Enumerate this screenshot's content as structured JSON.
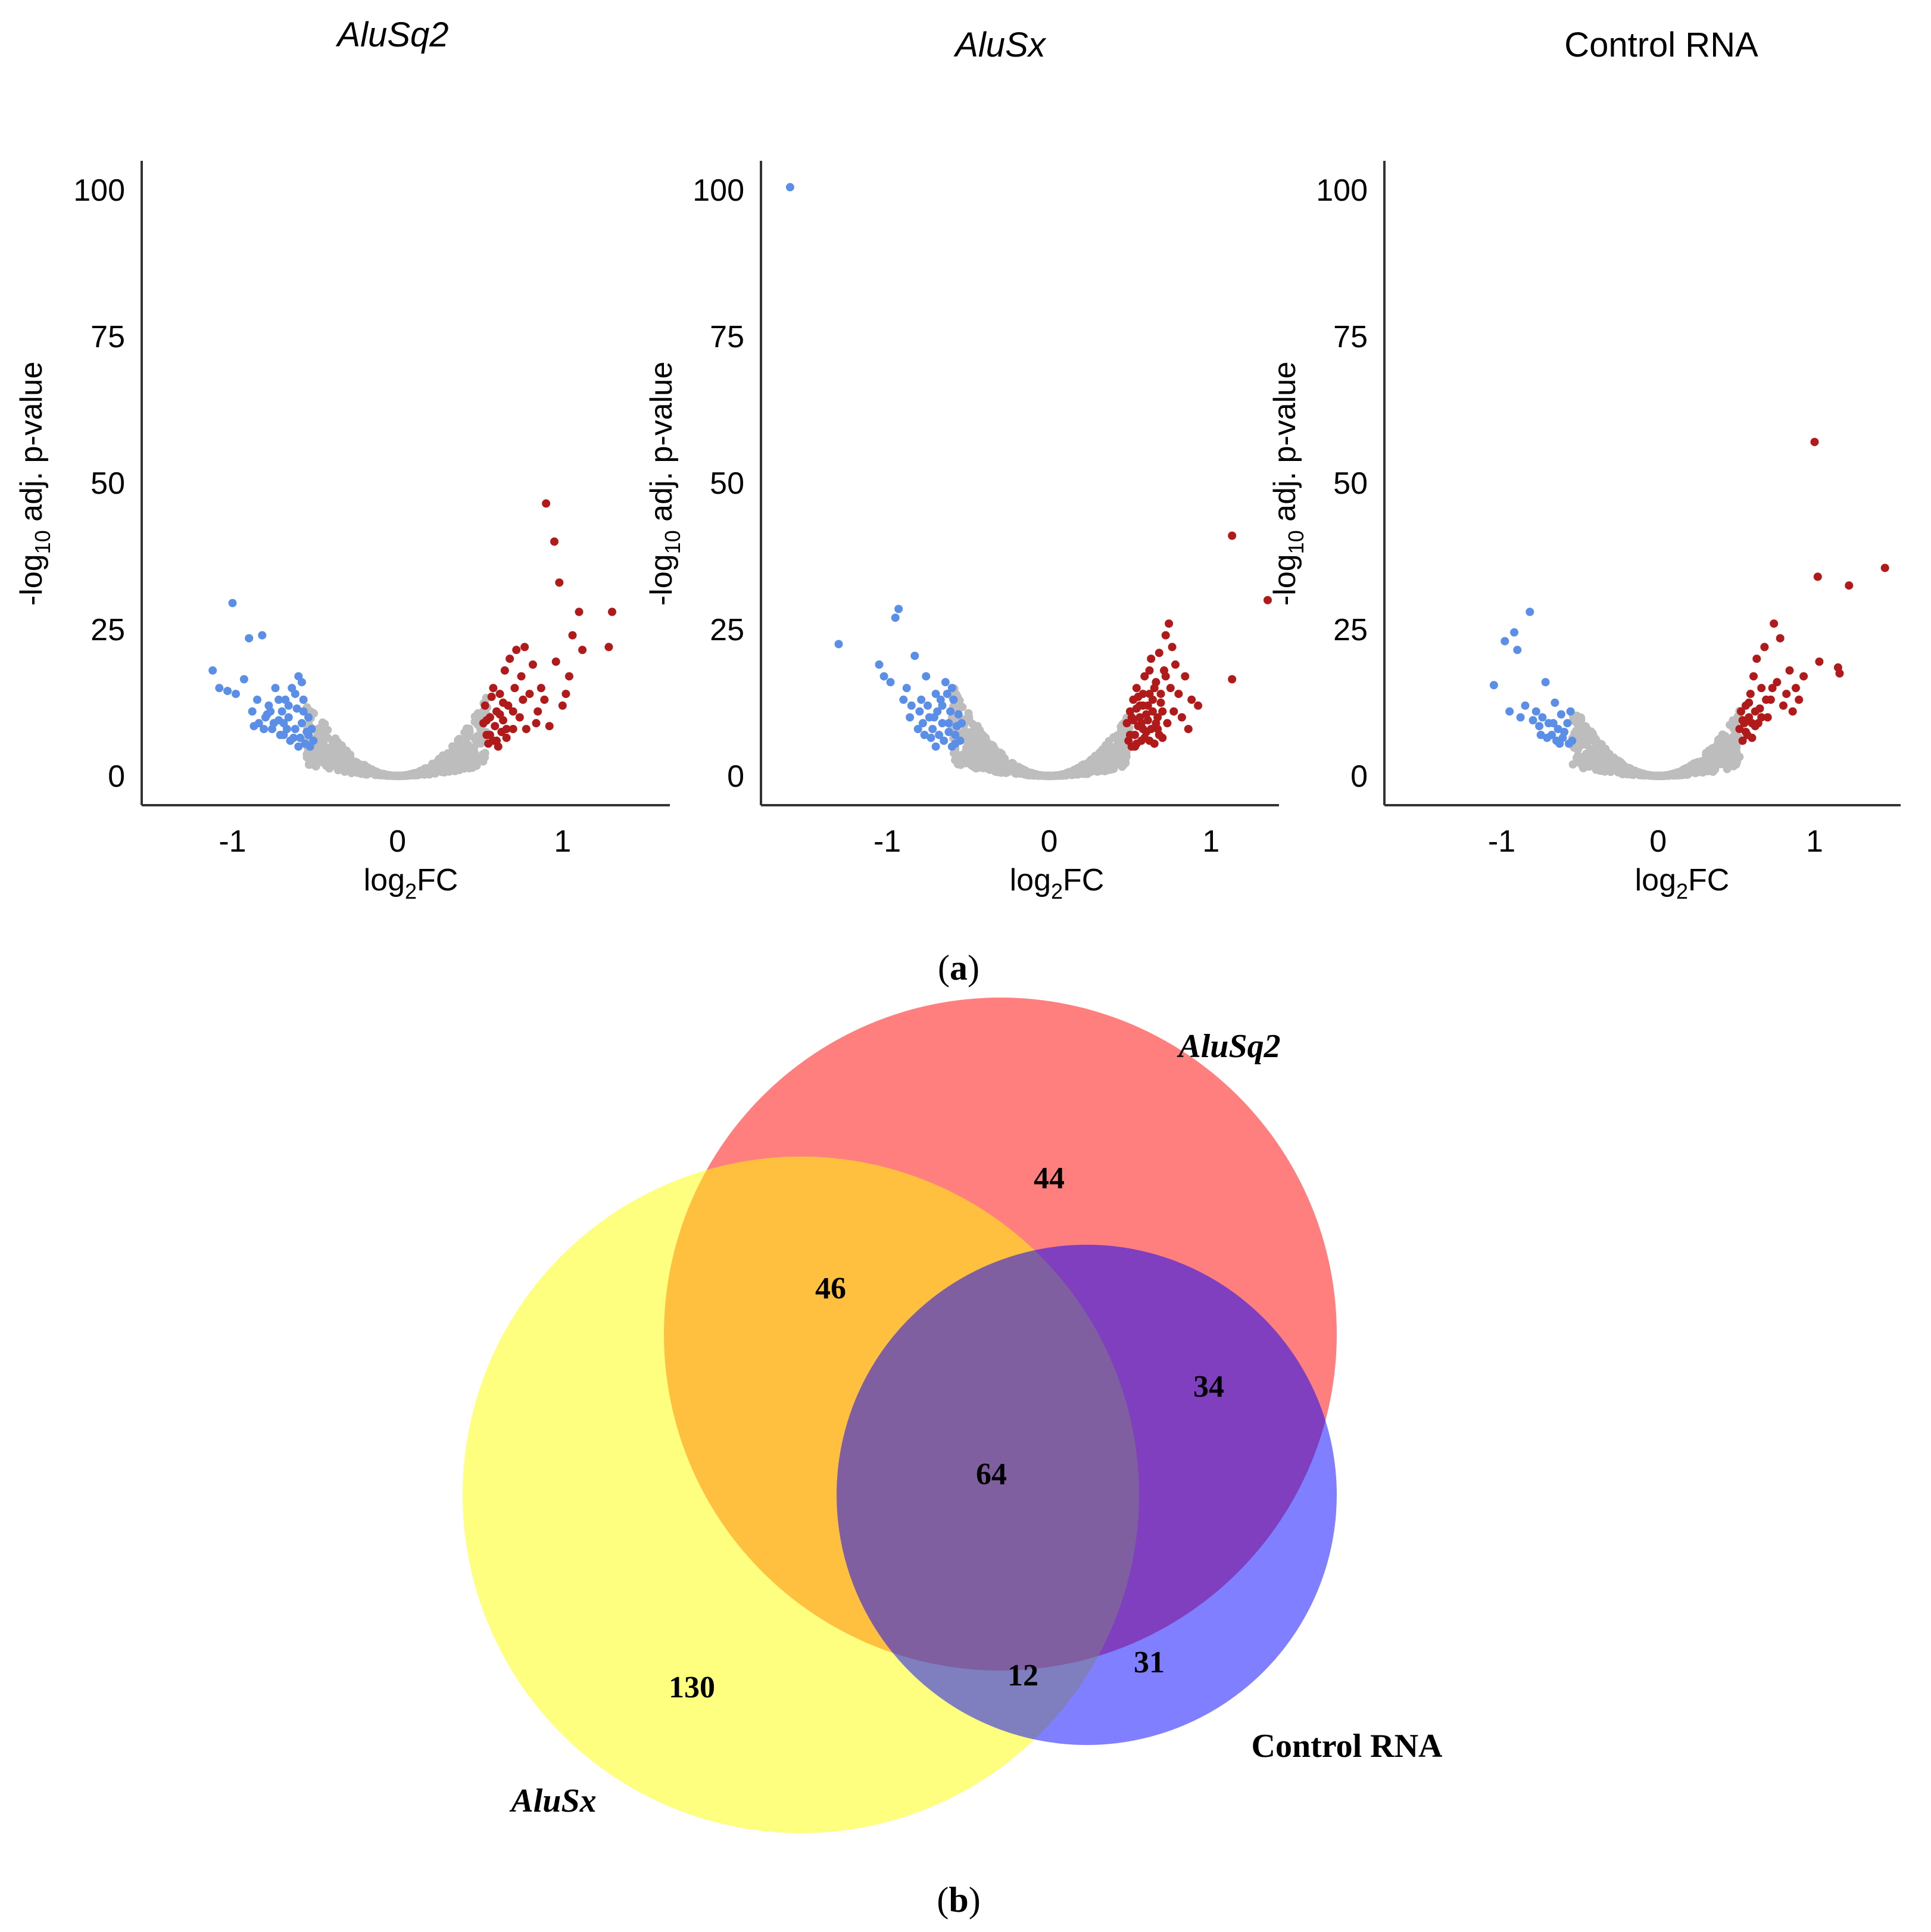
{
  "chart_data": [
    {
      "type": "scatter",
      "title": "AluSq2",
      "title_italic": true,
      "xlabel_main": "log",
      "xlabel_sub": "2",
      "xlabel_tail": "FC",
      "ylabel_main": "-log",
      "ylabel_sub": "10",
      "ylabel_tail": " adj. p-value",
      "xlim": [
        -1.55,
        1.65
      ],
      "ylim": [
        -5,
        105
      ],
      "xticks": [
        -1,
        0,
        1
      ],
      "yticks": [
        0,
        25,
        50,
        75,
        100
      ],
      "colors": {
        "down": "#5b8ee6",
        "up": "#b11a1a",
        "ns": "#bdbdbd"
      },
      "ns_cloud": {
        "xmin": -0.55,
        "xmax": 0.55,
        "k": 42,
        "max_y": 17
      },
      "down": [
        [
          -1.12,
          18
        ],
        [
          -1.08,
          15
        ],
        [
          -1.03,
          14.5
        ],
        [
          -1.0,
          29.5
        ],
        [
          -0.98,
          14
        ],
        [
          -0.93,
          16.5
        ],
        [
          -0.9,
          23.5
        ],
        [
          -0.88,
          11
        ],
        [
          -0.85,
          13
        ],
        [
          -0.82,
          24
        ],
        [
          -0.8,
          10
        ],
        [
          -0.78,
          12
        ],
        [
          -0.76,
          8
        ],
        [
          -0.74,
          15
        ],
        [
          -0.72,
          9.5
        ],
        [
          -0.7,
          11
        ],
        [
          -0.69,
          7
        ],
        [
          -0.68,
          13
        ],
        [
          -0.66,
          10
        ],
        [
          -0.65,
          6
        ],
        [
          -0.64,
          15
        ],
        [
          -0.62,
          8
        ],
        [
          -0.61,
          11.5
        ],
        [
          -0.6,
          17
        ],
        [
          -0.59,
          6.5
        ],
        [
          -0.58,
          9
        ],
        [
          -0.57,
          13
        ],
        [
          -0.56,
          5.5
        ],
        [
          -0.55,
          7.5
        ],
        [
          -0.54,
          10
        ],
        [
          -0.53,
          5
        ],
        [
          -0.52,
          8
        ],
        [
          -0.51,
          6
        ],
        [
          -0.6,
          5
        ],
        [
          -0.63,
          6.5
        ],
        [
          -0.67,
          8
        ],
        [
          -0.71,
          7
        ],
        [
          -0.75,
          9
        ],
        [
          -0.79,
          10.5
        ],
        [
          -0.84,
          9
        ],
        [
          -0.87,
          8.5
        ],
        [
          -0.66,
          12
        ],
        [
          -0.62,
          14
        ],
        [
          -0.58,
          16
        ],
        [
          -0.72,
          13
        ],
        [
          -0.77,
          11
        ],
        [
          -0.54,
          7
        ],
        [
          -0.57,
          11
        ],
        [
          -0.69,
          9
        ],
        [
          -0.81,
          8
        ]
      ],
      "up": [
        [
          0.52,
          9
        ],
        [
          0.53,
          12
        ],
        [
          0.54,
          7
        ],
        [
          0.55,
          5.5
        ],
        [
          0.56,
          10
        ],
        [
          0.57,
          13.5
        ],
        [
          0.58,
          6
        ],
        [
          0.59,
          8.5
        ],
        [
          0.6,
          11
        ],
        [
          0.61,
          5
        ],
        [
          0.62,
          14
        ],
        [
          0.63,
          7.5
        ],
        [
          0.64,
          9.5
        ],
        [
          0.65,
          18
        ],
        [
          0.66,
          6.5
        ],
        [
          0.67,
          12
        ],
        [
          0.68,
          20
        ],
        [
          0.7,
          8
        ],
        [
          0.71,
          15
        ],
        [
          0.72,
          21.5
        ],
        [
          0.74,
          10
        ],
        [
          0.75,
          17
        ],
        [
          0.77,
          22
        ],
        [
          0.78,
          8
        ],
        [
          0.8,
          14
        ],
        [
          0.82,
          19
        ],
        [
          0.84,
          9
        ],
        [
          0.85,
          11
        ],
        [
          0.87,
          15
        ],
        [
          0.89,
          13
        ],
        [
          0.9,
          46.5
        ],
        [
          0.92,
          8.5
        ],
        [
          0.95,
          40
        ],
        [
          0.96,
          19.5
        ],
        [
          0.98,
          33
        ],
        [
          1.0,
          12
        ],
        [
          1.02,
          14
        ],
        [
          1.04,
          17
        ],
        [
          1.06,
          24
        ],
        [
          1.1,
          28
        ],
        [
          1.12,
          21.5
        ],
        [
          1.3,
          28
        ],
        [
          1.28,
          22
        ],
        [
          0.58,
          15
        ],
        [
          0.62,
          10.5
        ],
        [
          0.66,
          8
        ],
        [
          0.56,
          7
        ],
        [
          0.6,
          6
        ],
        [
          0.64,
          12.5
        ],
        [
          0.7,
          11
        ],
        [
          0.76,
          13
        ],
        [
          0.54,
          9.5
        ]
      ]
    },
    {
      "type": "scatter",
      "title": "AluSx",
      "title_italic": true,
      "xlabel_main": "log",
      "xlabel_sub": "2",
      "xlabel_tail": "FC",
      "ylabel_main": "-log",
      "ylabel_sub": "10",
      "ylabel_tail": " adj. p-value",
      "xlim": [
        -1.78,
        1.42
      ],
      "ylim": [
        -5,
        105
      ],
      "xticks": [
        -1,
        0,
        1
      ],
      "yticks": [
        0,
        25,
        50,
        75,
        100
      ],
      "colors": {
        "down": "#5b8ee6",
        "up": "#b11a1a",
        "ns": "#bdbdbd"
      },
      "ns_cloud": {
        "xmin": -0.6,
        "xmax": 0.5,
        "k": 40,
        "max_y": 16
      },
      "down": [
        [
          -1.6,
          100.5
        ],
        [
          -1.3,
          22.5
        ],
        [
          -1.05,
          19
        ],
        [
          -1.02,
          17
        ],
        [
          -0.98,
          16
        ],
        [
          -0.95,
          27
        ],
        [
          -0.93,
          28.5
        ],
        [
          -0.9,
          13
        ],
        [
          -0.88,
          15
        ],
        [
          -0.85,
          12
        ],
        [
          -0.83,
          20.5
        ],
        [
          -0.8,
          11
        ],
        [
          -0.78,
          9
        ],
        [
          -0.76,
          17
        ],
        [
          -0.74,
          10
        ],
        [
          -0.72,
          8
        ],
        [
          -0.7,
          14
        ],
        [
          -0.68,
          7
        ],
        [
          -0.66,
          12
        ],
        [
          -0.65,
          6
        ],
        [
          -0.64,
          16
        ],
        [
          -0.62,
          9
        ],
        [
          -0.61,
          11
        ],
        [
          -0.6,
          5
        ],
        [
          -0.59,
          13
        ],
        [
          -0.58,
          7
        ],
        [
          -0.57,
          8.5
        ],
        [
          -0.56,
          10.5
        ],
        [
          -0.55,
          6
        ],
        [
          -0.54,
          9
        ],
        [
          -0.7,
          5
        ],
        [
          -0.73,
          6.5
        ],
        [
          -0.77,
          7
        ],
        [
          -0.81,
          8
        ],
        [
          -0.86,
          10
        ],
        [
          -0.69,
          11
        ],
        [
          -0.63,
          14
        ],
        [
          -0.6,
          15
        ],
        [
          -0.67,
          13
        ],
        [
          -0.75,
          12
        ],
        [
          -0.58,
          5.5
        ],
        [
          -0.62,
          7.5
        ],
        [
          -0.66,
          9
        ],
        [
          -0.71,
          10
        ],
        [
          -0.79,
          13
        ]
      ],
      "up": [
        [
          0.48,
          9
        ],
        [
          0.49,
          6
        ],
        [
          0.5,
          11
        ],
        [
          0.51,
          5
        ],
        [
          0.52,
          13
        ],
        [
          0.53,
          7
        ],
        [
          0.54,
          15
        ],
        [
          0.55,
          8.5
        ],
        [
          0.56,
          10
        ],
        [
          0.57,
          6
        ],
        [
          0.58,
          12
        ],
        [
          0.59,
          17
        ],
        [
          0.6,
          7.5
        ],
        [
          0.61,
          9.5
        ],
        [
          0.62,
          14
        ],
        [
          0.63,
          20
        ],
        [
          0.64,
          11
        ],
        [
          0.65,
          5.5
        ],
        [
          0.66,
          16
        ],
        [
          0.67,
          8
        ],
        [
          0.68,
          21
        ],
        [
          0.69,
          12.5
        ],
        [
          0.7,
          6.5
        ],
        [
          0.71,
          18
        ],
        [
          0.72,
          24
        ],
        [
          0.73,
          9
        ],
        [
          0.74,
          26
        ],
        [
          0.75,
          15
        ],
        [
          0.77,
          11
        ],
        [
          0.78,
          19
        ],
        [
          0.8,
          14
        ],
        [
          0.82,
          10
        ],
        [
          0.84,
          17
        ],
        [
          0.86,
          8
        ],
        [
          0.88,
          13
        ],
        [
          0.92,
          12
        ],
        [
          1.13,
          41
        ],
        [
          1.13,
          16.5
        ],
        [
          1.35,
          30
        ],
        [
          0.5,
          7
        ],
        [
          0.52,
          9.5
        ],
        [
          0.54,
          5.5
        ],
        [
          0.56,
          12
        ],
        [
          0.58,
          8
        ],
        [
          0.6,
          10.5
        ],
        [
          0.62,
          6
        ],
        [
          0.64,
          13
        ],
        [
          0.66,
          9
        ],
        [
          0.68,
          7
        ],
        [
          0.7,
          11
        ],
        [
          0.51,
          10
        ],
        [
          0.53,
          5
        ],
        [
          0.55,
          13.5
        ],
        [
          0.57,
          9
        ],
        [
          0.59,
          6.5
        ],
        [
          0.61,
          12
        ],
        [
          0.63,
          8
        ],
        [
          0.65,
          15
        ],
        [
          0.67,
          10
        ],
        [
          0.69,
          14
        ],
        [
          0.76,
          22
        ],
        [
          0.72,
          17
        ],
        [
          0.62,
          18
        ],
        [
          0.58,
          14
        ],
        [
          0.54,
          11.5
        ]
      ]
    },
    {
      "type": "scatter",
      "title": "Control RNA",
      "title_italic": false,
      "xlabel_main": "log",
      "xlabel_sub": "2",
      "xlabel_tail": "FC",
      "ylabel_main": "-log",
      "ylabel_sub": "10",
      "ylabel_tail": " adj. p-value",
      "xlim": [
        -1.75,
        1.55
      ],
      "ylim": [
        -5,
        105
      ],
      "xticks": [
        -1,
        0,
        1
      ],
      "yticks": [
        0,
        25,
        50,
        75,
        100
      ],
      "colors": {
        "down": "#5b8ee6",
        "up": "#b11a1a",
        "ns": "#bdbdbd"
      },
      "ns_cloud": {
        "xmin": -0.55,
        "xmax": 0.52,
        "k": 38,
        "max_y": 14
      },
      "down": [
        [
          -1.05,
          15.5
        ],
        [
          -0.98,
          23
        ],
        [
          -0.95,
          11
        ],
        [
          -0.92,
          24.5
        ],
        [
          -0.9,
          21.5
        ],
        [
          -0.88,
          10
        ],
        [
          -0.85,
          12
        ],
        [
          -0.82,
          28
        ],
        [
          -0.8,
          9.5
        ],
        [
          -0.78,
          11
        ],
        [
          -0.76,
          8.5
        ],
        [
          -0.74,
          10
        ],
        [
          -0.72,
          16
        ],
        [
          -0.7,
          9
        ],
        [
          -0.68,
          7
        ],
        [
          -0.66,
          12.5
        ],
        [
          -0.65,
          6
        ],
        [
          -0.64,
          8
        ],
        [
          -0.62,
          10.5
        ],
        [
          -0.61,
          6.5
        ],
        [
          -0.6,
          7.5
        ],
        [
          -0.58,
          9
        ],
        [
          -0.57,
          5.5
        ],
        [
          -0.56,
          11
        ],
        [
          -0.55,
          6
        ],
        [
          -0.67,
          9
        ],
        [
          -0.71,
          6.5
        ],
        [
          -0.75,
          7
        ],
        [
          -0.63,
          5.5
        ]
      ],
      "up": [
        [
          0.52,
          8
        ],
        [
          0.53,
          11
        ],
        [
          0.54,
          6
        ],
        [
          0.55,
          9
        ],
        [
          0.56,
          12
        ],
        [
          0.57,
          7
        ],
        [
          0.58,
          10
        ],
        [
          0.59,
          14
        ],
        [
          0.6,
          6.5
        ],
        [
          0.61,
          17
        ],
        [
          0.62,
          8.5
        ],
        [
          0.63,
          20
        ],
        [
          0.64,
          9
        ],
        [
          0.65,
          11.5
        ],
        [
          0.66,
          15
        ],
        [
          0.68,
          22
        ],
        [
          0.7,
          10
        ],
        [
          0.72,
          13
        ],
        [
          0.74,
          26
        ],
        [
          0.76,
          16
        ],
        [
          0.78,
          23.5
        ],
        [
          0.8,
          12
        ],
        [
          0.82,
          14
        ],
        [
          0.84,
          18
        ],
        [
          0.86,
          11
        ],
        [
          0.88,
          15
        ],
        [
          0.9,
          13
        ],
        [
          0.93,
          17
        ],
        [
          1.0,
          57
        ],
        [
          1.02,
          34
        ],
        [
          1.03,
          19.5
        ],
        [
          1.15,
          18.5
        ],
        [
          1.16,
          17.5
        ],
        [
          1.22,
          32.5
        ],
        [
          1.45,
          35.5
        ],
        [
          0.54,
          9.5
        ],
        [
          0.56,
          7.5
        ],
        [
          0.58,
          12.5
        ],
        [
          0.6,
          9
        ],
        [
          0.62,
          11
        ],
        [
          0.66,
          10
        ],
        [
          0.69,
          13
        ],
        [
          0.73,
          15
        ]
      ]
    }
  ],
  "caption_a": "a",
  "caption_b": "b",
  "venn": {
    "sets": [
      {
        "name": "AluSq2",
        "color": "#ff0000",
        "opacity": 0.5,
        "italic": true
      },
      {
        "name": "AluSx",
        "color": "#ffff00",
        "opacity": 0.5,
        "italic": true
      },
      {
        "name": "Control RNA",
        "color": "#0000ff",
        "opacity": 0.5,
        "italic": false
      }
    ],
    "regions": [
      {
        "sets": [
          "AluSq2"
        ],
        "value": "44"
      },
      {
        "sets": [
          "AluSq2",
          "AluSx"
        ],
        "value": "46"
      },
      {
        "sets": [
          "AluSq2",
          "Control RNA"
        ],
        "value": "34"
      },
      {
        "sets": [
          "AluSq2",
          "AluSx",
          "Control RNA"
        ],
        "value": "64"
      },
      {
        "sets": [
          "AluSx"
        ],
        "value": "130"
      },
      {
        "sets": [
          "AluSx",
          "Control RNA"
        ],
        "value": "12"
      },
      {
        "sets": [
          "Control RNA"
        ],
        "value": "31"
      }
    ]
  }
}
